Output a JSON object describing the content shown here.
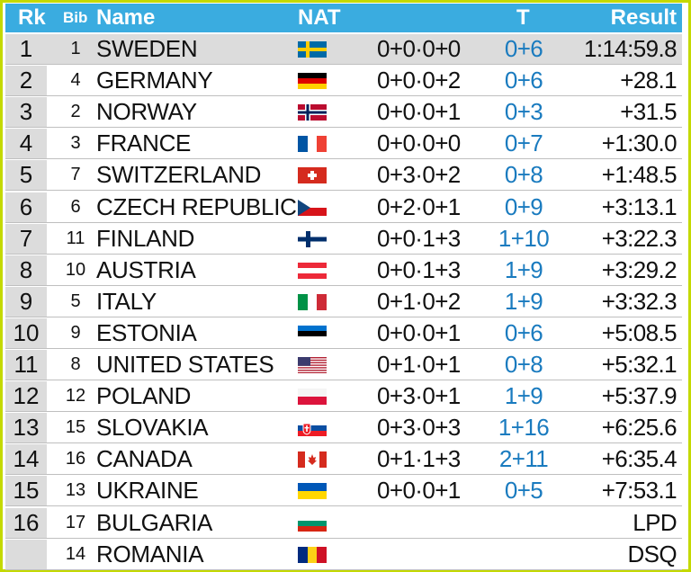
{
  "header": {
    "rk": "Rk",
    "bib": "Bib",
    "name": "Name",
    "nat": "NAT",
    "t": "T",
    "result": "Result"
  },
  "rows": [
    {
      "rk": "1",
      "bib": "1",
      "name": "SWEDEN",
      "flag": "sweden",
      "shooting": "0+0·0+0",
      "t": "0+6",
      "result": "1:14:59.8"
    },
    {
      "rk": "2",
      "bib": "4",
      "name": "GERMANY",
      "flag": "germany",
      "shooting": "0+0·0+2",
      "t": "0+6",
      "result": "+28.1"
    },
    {
      "rk": "3",
      "bib": "2",
      "name": "NORWAY",
      "flag": "norway",
      "shooting": "0+0·0+1",
      "t": "0+3",
      "result": "+31.5"
    },
    {
      "rk": "4",
      "bib": "3",
      "name": "FRANCE",
      "flag": "france",
      "shooting": "0+0·0+0",
      "t": "0+7",
      "result": "+1:30.0"
    },
    {
      "rk": "5",
      "bib": "7",
      "name": "SWITZERLAND",
      "flag": "switzerland",
      "shooting": "0+3·0+2",
      "t": "0+8",
      "result": "+1:48.5"
    },
    {
      "rk": "6",
      "bib": "6",
      "name": "CZECH REPUBLIC",
      "flag": "czech",
      "shooting": "0+2·0+1",
      "t": "0+9",
      "result": "+3:13.1"
    },
    {
      "rk": "7",
      "bib": "11",
      "name": "FINLAND",
      "flag": "finland",
      "shooting": "0+0·1+3",
      "t": "1+10",
      "result": "+3:22.3"
    },
    {
      "rk": "8",
      "bib": "10",
      "name": "AUSTRIA",
      "flag": "austria",
      "shooting": "0+0·1+3",
      "t": "1+9",
      "result": "+3:29.2"
    },
    {
      "rk": "9",
      "bib": "5",
      "name": "ITALY",
      "flag": "italy",
      "shooting": "0+1·0+2",
      "t": "1+9",
      "result": "+3:32.3"
    },
    {
      "rk": "10",
      "bib": "9",
      "name": "ESTONIA",
      "flag": "estonia",
      "shooting": "0+0·0+1",
      "t": "0+6",
      "result": "+5:08.5"
    },
    {
      "rk": "11",
      "bib": "8",
      "name": "UNITED STATES",
      "flag": "usa",
      "shooting": "0+1·0+1",
      "t": "0+8",
      "result": "+5:32.1"
    },
    {
      "rk": "12",
      "bib": "12",
      "name": "POLAND",
      "flag": "poland",
      "shooting": "0+3·0+1",
      "t": "1+9",
      "result": "+5:37.9"
    },
    {
      "rk": "13",
      "bib": "15",
      "name": "SLOVAKIA",
      "flag": "slovakia",
      "shooting": "0+3·0+3",
      "t": "1+16",
      "result": "+6:25.6"
    },
    {
      "rk": "14",
      "bib": "16",
      "name": "CANADA",
      "flag": "canada",
      "shooting": "0+1·1+3",
      "t": "2+11",
      "result": "+6:35.4"
    },
    {
      "rk": "15",
      "bib": "13",
      "name": "UKRAINE",
      "flag": "ukraine",
      "shooting": "0+0·0+1",
      "t": "0+5",
      "result": "+7:53.1"
    },
    {
      "rk": "16",
      "bib": "17",
      "name": "BULGARIA",
      "flag": "bulgaria",
      "shooting": "",
      "t": "",
      "result": "LPD"
    },
    {
      "rk": "",
      "bib": "14",
      "name": "ROMANIA",
      "flag": "romania",
      "shooting": "",
      "t": "",
      "result": "DSQ"
    }
  ],
  "colors": {
    "header_bg": "#3aace0",
    "frame": "#c4d900",
    "rank_bg": "#dcdcdc",
    "t_color": "#1a7bbf"
  }
}
